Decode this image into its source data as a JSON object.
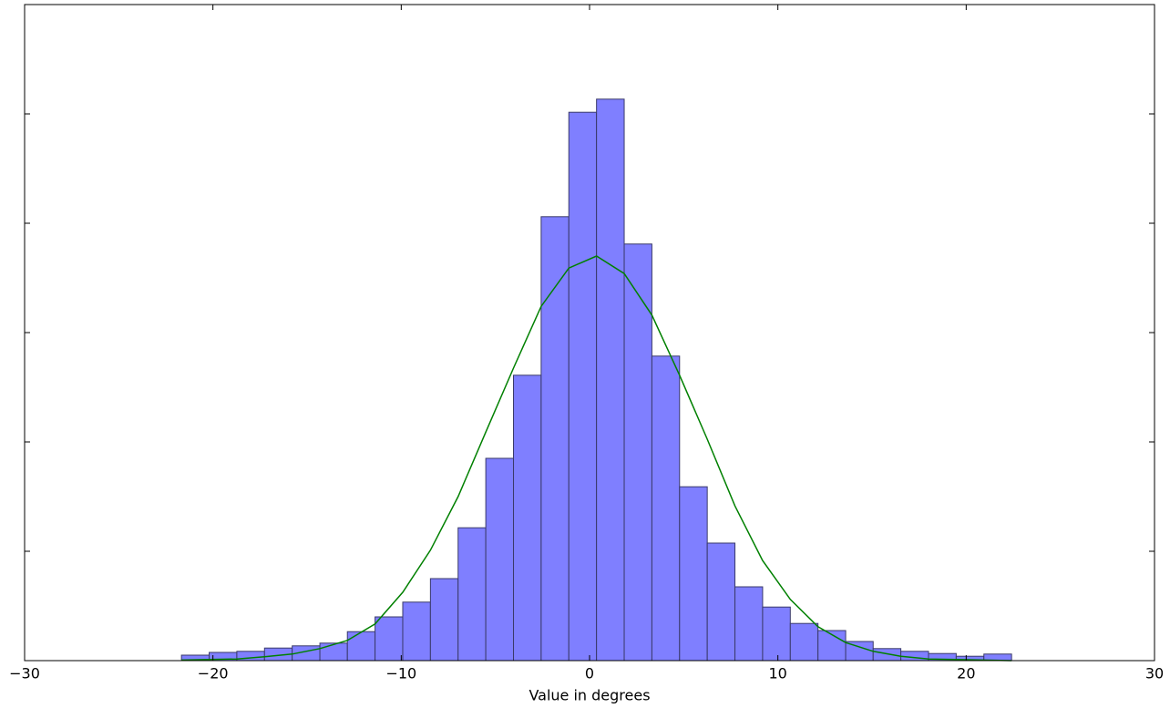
{
  "chart_data": {
    "type": "histogram",
    "xlabel": "Value in degrees",
    "bins": [
      -21.67,
      -20.2,
      -18.73,
      -17.26,
      -15.79,
      -14.32,
      -12.86,
      -11.39,
      -9.92,
      -8.45,
      -6.98,
      -5.51,
      -4.04,
      -2.57,
      -1.1,
      0.37,
      1.84,
      3.31,
      4.78,
      6.25,
      7.72,
      9.19,
      10.66,
      12.13,
      13.6,
      15.06,
      16.53,
      18.0,
      19.47,
      20.94,
      22.41
    ],
    "values": [
      0.001,
      0.0015,
      0.0017,
      0.0023,
      0.0027,
      0.0032,
      0.0053,
      0.008,
      0.0107,
      0.015,
      0.0243,
      0.037,
      0.0522,
      0.0812,
      0.1003,
      0.1027,
      0.0762,
      0.0557,
      0.0318,
      0.0215,
      0.0135,
      0.0098,
      0.0068,
      0.0055,
      0.0035,
      0.0022,
      0.0017,
      0.0013,
      0.0008,
      0.0012
    ],
    "color": "#7f7fff",
    "curve": {
      "color": "#008000",
      "x": [
        -21.67,
        -20.2,
        -18.73,
        -17.26,
        -15.79,
        -14.32,
        -12.86,
        -11.39,
        -9.92,
        -8.45,
        -6.98,
        -5.51,
        -4.04,
        -2.57,
        -1.1,
        0.37,
        1.84,
        3.31,
        4.78,
        6.25,
        7.72,
        9.19,
        10.66,
        12.13,
        13.6,
        15.06,
        16.53,
        18.0,
        19.47,
        20.94,
        22.41
      ],
      "values": [
        0.0001,
        0.0002,
        0.0003,
        0.0007,
        0.0012,
        0.0022,
        0.0037,
        0.0067,
        0.0125,
        0.0202,
        0.03,
        0.0418,
        0.0535,
        0.0648,
        0.0718,
        0.074,
        0.0708,
        0.0632,
        0.0522,
        0.0405,
        0.0283,
        0.0183,
        0.0112,
        0.0062,
        0.0033,
        0.0017,
        0.0008,
        0.0003,
        0.0002,
        0.0001,
        0
      ]
    },
    "xlim": [
      -30,
      30
    ],
    "xticks": [
      {
        "value": -30,
        "label": "−30"
      },
      {
        "value": -20,
        "label": "−20"
      },
      {
        "value": -10,
        "label": "−10"
      },
      0,
      10,
      20,
      30
    ],
    "ylim": [
      0,
      0.12
    ],
    "yticks": [
      0,
      0.02,
      0.04,
      0.06,
      0.08,
      0.1
    ]
  }
}
